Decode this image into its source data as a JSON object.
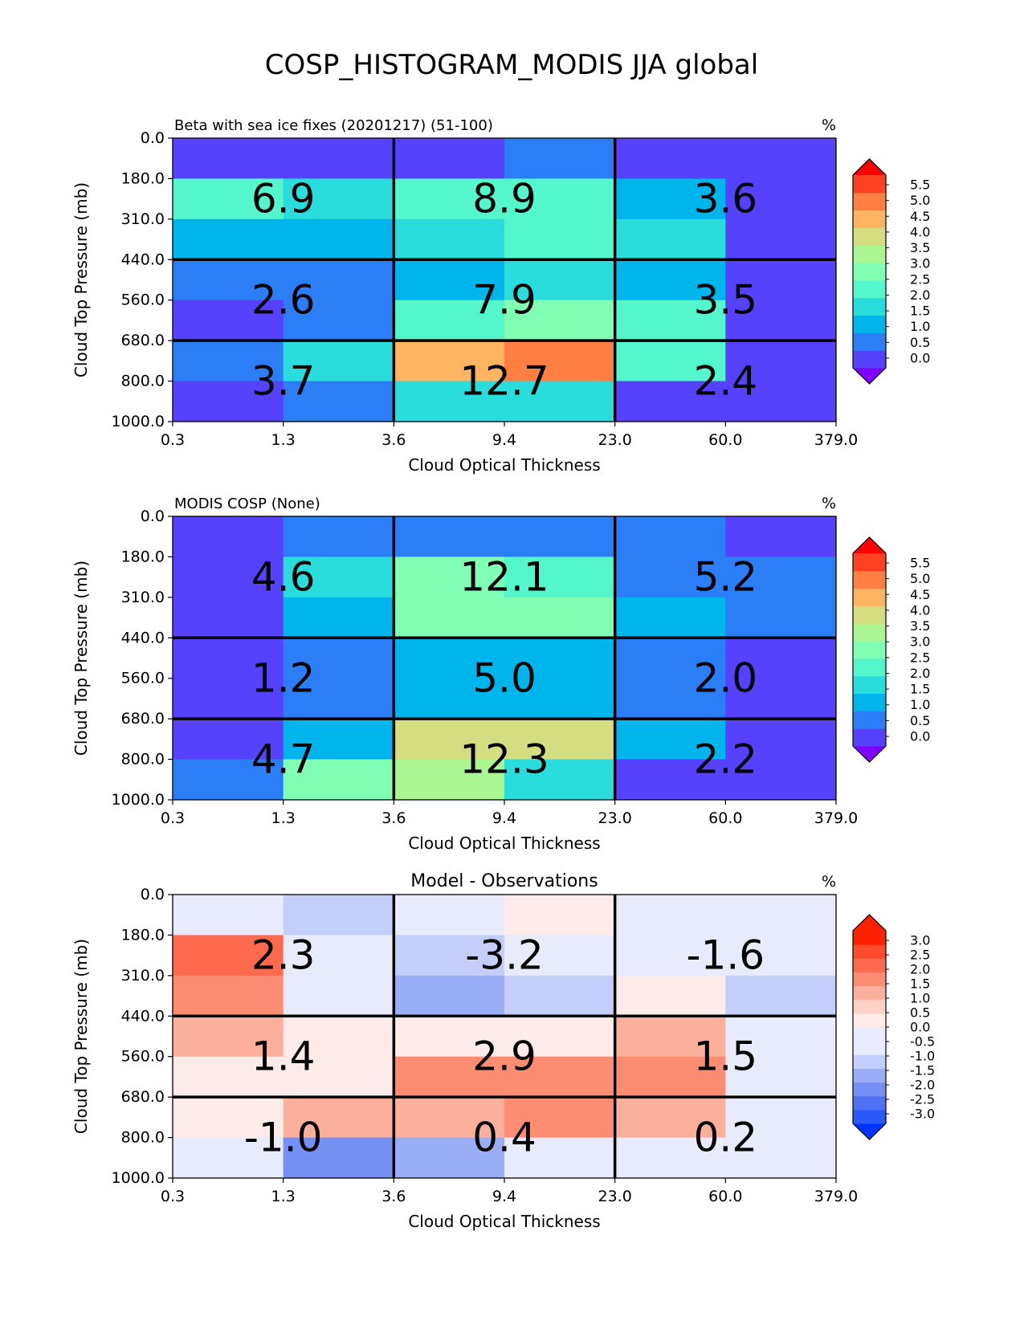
{
  "chart_data": {
    "type": "heatmap",
    "title": "COSP_HISTOGRAM_MODIS JJA global",
    "panels": [
      {
        "title_left": "Beta with sea ice fixes (20201217) (51-100)",
        "title_center": "",
        "units": "%",
        "xlabel": "Cloud Optical Thickness",
        "ylabel": "Cloud Top Pressure (mb)",
        "xticks": [
          "0.3",
          "1.3",
          "3.6",
          "9.4",
          "23.0",
          "60.0",
          "379.0"
        ],
        "yticks": [
          "0.0",
          "180.0",
          "310.0",
          "440.0",
          "560.0",
          "680.0",
          "800.0",
          "1000.0"
        ],
        "colormap": "rainbow",
        "cbar_ticks": [
          "5.5",
          "5.0",
          "4.5",
          "4.0",
          "3.5",
          "3.0",
          "2.5",
          "2.0",
          "1.5",
          "1.0",
          "0.5",
          "0.0"
        ],
        "cbar_levels": [
          0.0,
          0.5,
          1.0,
          1.5,
          2.0,
          2.5,
          3.0,
          3.5,
          4.0,
          4.5,
          5.0,
          5.5
        ],
        "cbar_colors": [
          "#8000ff",
          "#5641fd",
          "#2c7ef7",
          "#00b5eb",
          "#2adddd",
          "#54f6cb",
          "#80ffb4",
          "#aaf693",
          "#d4dd80",
          "#ffb462",
          "#ff7e41",
          "#ff4123",
          "#ff0000"
        ],
        "values": [
          [
            0.4,
            0.4,
            0.4,
            0.9,
            0.4,
            0.4
          ],
          [
            2.1,
            1.9,
            2.3,
            2.3,
            1.4,
            0.3
          ],
          [
            1.2,
            1.2,
            1.9,
            2.1,
            1.8,
            0.3
          ],
          [
            0.7,
            0.7,
            1.3,
            1.8,
            1.2,
            0.3
          ],
          [
            0.3,
            0.7,
            2.1,
            2.7,
            2.1,
            0.3
          ],
          [
            0.7,
            1.8,
            4.1,
            4.7,
            2.2,
            0.3
          ],
          [
            0.3,
            0.7,
            1.8,
            1.8,
            0.3,
            0.3
          ]
        ],
        "block_sums": [
          "6.9",
          "8.9",
          "3.6",
          "2.6",
          "7.9",
          "3.5",
          "3.7",
          "12.7",
          "2.4"
        ]
      },
      {
        "title_left": "MODIS COSP (None)",
        "title_center": "",
        "units": "%",
        "xlabel": "Cloud Optical Thickness",
        "ylabel": "Cloud Top Pressure (mb)",
        "xticks": [
          "0.3",
          "1.3",
          "3.6",
          "9.4",
          "23.0",
          "60.0",
          "379.0"
        ],
        "yticks": [
          "0.0",
          "180.0",
          "310.0",
          "440.0",
          "560.0",
          "680.0",
          "800.0",
          "1000.0"
        ],
        "colormap": "rainbow",
        "cbar_ticks": [
          "5.5",
          "5.0",
          "4.5",
          "4.0",
          "3.5",
          "3.0",
          "2.5",
          "2.0",
          "1.5",
          "1.0",
          "0.5",
          "0.0"
        ],
        "cbar_levels": [
          0.0,
          0.5,
          1.0,
          1.5,
          2.0,
          2.5,
          3.0,
          3.5,
          4.0,
          4.5,
          5.0,
          5.5
        ],
        "cbar_colors": [
          "#8000ff",
          "#5641fd",
          "#2c7ef7",
          "#00b5eb",
          "#2adddd",
          "#54f6cb",
          "#80ffb4",
          "#aaf693",
          "#d4dd80",
          "#ffb462",
          "#ff7e41",
          "#ff4123",
          "#ff0000"
        ],
        "values": [
          [
            0.3,
            0.7,
            0.7,
            0.7,
            0.7,
            0.3
          ],
          [
            0.3,
            1.8,
            2.8,
            2.3,
            0.9,
            0.9
          ],
          [
            0.3,
            1.3,
            2.8,
            2.8,
            1.3,
            0.9
          ],
          [
            0.3,
            0.7,
            1.3,
            1.3,
            0.9,
            0.3
          ],
          [
            0.3,
            0.7,
            1.3,
            1.3,
            0.9,
            0.3
          ],
          [
            0.3,
            1.3,
            3.8,
            3.8,
            1.3,
            0.3
          ],
          [
            0.7,
            2.8,
            3.1,
            1.8,
            0.3,
            0.3
          ]
        ],
        "block_sums": [
          "4.6",
          "12.1",
          "5.2",
          "1.2",
          "5.0",
          "2.0",
          "4.7",
          "12.3",
          "2.2"
        ]
      },
      {
        "title_left": "",
        "title_center": "Model - Observations",
        "units": "%",
        "xlabel": "Cloud Optical Thickness",
        "ylabel": "Cloud Top Pressure (mb)",
        "xticks": [
          "0.3",
          "1.3",
          "3.6",
          "9.4",
          "23.0",
          "60.0",
          "379.0"
        ],
        "yticks": [
          "0.0",
          "180.0",
          "310.0",
          "440.0",
          "560.0",
          "680.0",
          "800.0",
          "1000.0"
        ],
        "colormap": "diverging",
        "cbar_ticks": [
          "3.0",
          "2.5",
          "2.0",
          "1.5",
          "1.0",
          "0.5",
          "0.0",
          "-0.5",
          "-1.0",
          "-1.5",
          "-2.0",
          "-2.5",
          "-3.0"
        ],
        "cbar_levels": [
          -3.0,
          -2.5,
          -2.0,
          -1.5,
          -1.0,
          -0.5,
          -0.25,
          0.0,
          0.25,
          0.5,
          1.0,
          1.5,
          2.0,
          2.5,
          3.0
        ],
        "cbar_colors": [
          "#0033ff",
          "#2a5bfa",
          "#4e72f3",
          "#7590f4",
          "#9aaef7",
          "#c3cffa",
          "#e7ebfb",
          "#e7ebfb",
          "#fcebe8",
          "#fdd0c8",
          "#fcaf9b",
          "#fc8c72",
          "#fd6a4d",
          "#ff4a2b",
          "#ff2000",
          "#ff2000"
        ],
        "values": [
          [
            -0.1,
            -0.6,
            -0.1,
            0.1,
            -0.1,
            -0.1
          ],
          [
            1.8,
            -0.1,
            -0.6,
            -0.1,
            -0.1,
            -0.1
          ],
          [
            1.2,
            -0.1,
            -1.2,
            -0.6,
            0.1,
            -0.6
          ],
          [
            0.6,
            0.1,
            0.1,
            0.1,
            0.6,
            -0.1
          ],
          [
            0.1,
            0.1,
            1.2,
            1.2,
            1.2,
            -0.1
          ],
          [
            0.1,
            0.6,
            0.6,
            1.2,
            0.6,
            -0.1
          ],
          [
            -0.1,
            -1.7,
            -1.2,
            -0.1,
            -0.1,
            -0.1
          ]
        ],
        "block_sums": [
          "2.3",
          "-3.2",
          "-1.6",
          "1.4",
          "2.9",
          "1.5",
          "-1.0",
          "0.4",
          "0.2"
        ]
      }
    ]
  }
}
